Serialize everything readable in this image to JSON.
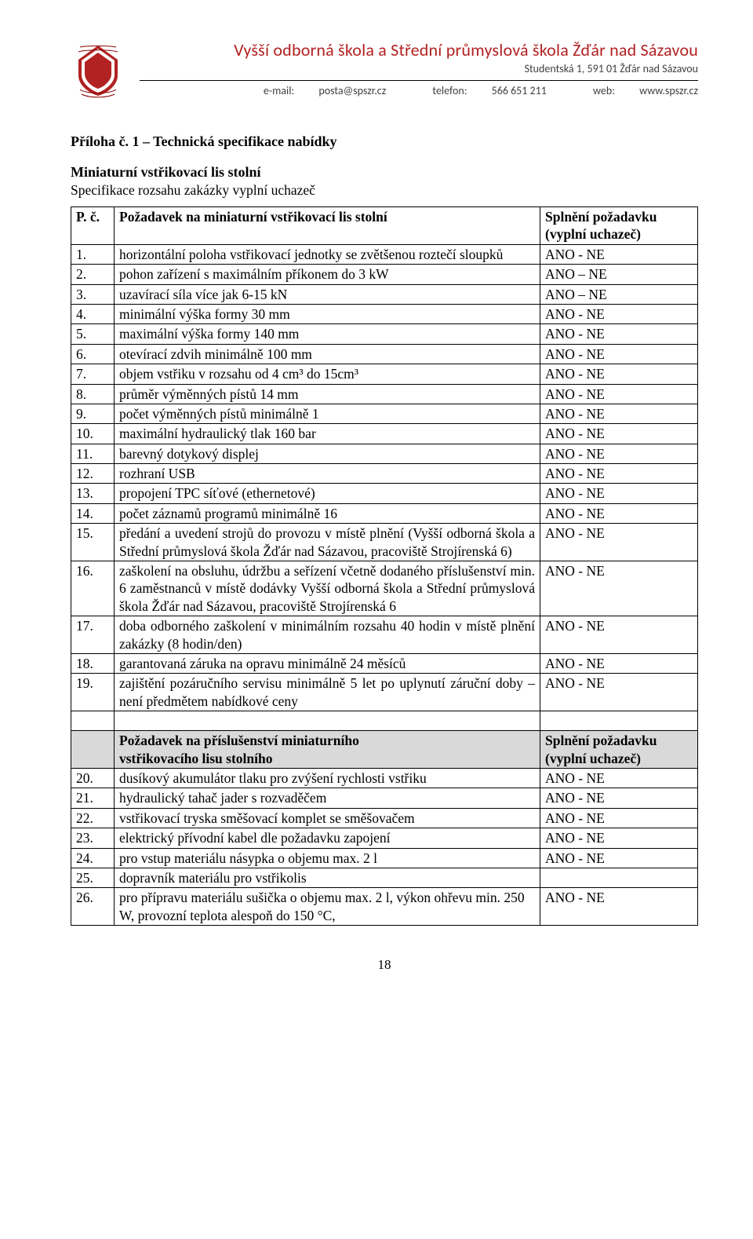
{
  "letterhead": {
    "school_name": "Vyšší odborná škola a Střední průmyslová škola Žďár nad Sázavou",
    "address": "Studentská 1, 591 01 Žďár nad Sázavou",
    "email_label": "e-mail:",
    "email_value": "posta@spszr.cz",
    "phone_label": "telefon:",
    "phone_value": "566 651 211",
    "web_label": "web:",
    "web_value": "www.spszr.cz",
    "logo_fill": "#b22222",
    "logo_line": "#8b0000"
  },
  "doc": {
    "title": "Příloha č. 1 – Technická specifikace nabídky",
    "section_title": "Miniaturní vstřikovací lis stolní",
    "section_sub": "Specifikace rozsahu zakázky vyplní uchazeč",
    "page_number": "18"
  },
  "table": {
    "header": {
      "num": "P. č.",
      "req": "Požadavek na miniaturní vstřikovací lis stolní",
      "ans_line1": "Splnění požadavku",
      "ans_line2": "(vyplní uchazeč)"
    },
    "rows": [
      {
        "n": "1.",
        "req": "horizontální poloha vstřikovací jednotky se zvětšenou roztečí sloupků",
        "ans": "ANO - NE",
        "justify": true
      },
      {
        "n": "2.",
        "req": "pohon zařízení s maximálním příkonem do 3 kW",
        "ans": "ANO – NE"
      },
      {
        "n": "3.",
        "req": "uzavírací síla více jak 6-15 kN",
        "ans": "ANO – NE"
      },
      {
        "n": "4.",
        "req": "minimální výška formy 30 mm",
        "ans": "ANO - NE"
      },
      {
        "n": "5.",
        "req": "maximální výška formy 140 mm",
        "ans": "ANO - NE"
      },
      {
        "n": "6.",
        "req": "otevírací zdvih minimálně 100 mm",
        "ans": "ANO - NE"
      },
      {
        "n": "7.",
        "req": "objem vstřiku v rozsahu od 4 cm³ do 15cm³",
        "ans": "ANO - NE"
      },
      {
        "n": "8.",
        "req": "průměr výměnných pístů 14 mm",
        "ans": "ANO - NE"
      },
      {
        "n": "9.",
        "req": "počet výměnných pístů minimálně 1",
        "ans": "ANO - NE"
      },
      {
        "n": "10.",
        "req": "maximální hydraulický tlak 160 bar",
        "ans": "ANO - NE"
      },
      {
        "n": "11.",
        "req": "barevný dotykový displej",
        "ans": "ANO - NE"
      },
      {
        "n": "12.",
        "req": "rozhraní USB",
        "ans": "ANO - NE"
      },
      {
        "n": "13.",
        "req": "propojení TPC síťové (ethernetové)",
        "ans": "ANO - NE"
      },
      {
        "n": "14.",
        "req": "počet záznamů programů minimálně 16",
        "ans": "ANO - NE"
      },
      {
        "n": "15.",
        "req": "předání a uvedení strojů do provozu v místě plnění (Vyšší odborná škola a Střední průmyslová škola Žďár nad Sázavou, pracoviště Strojírenská 6)",
        "ans": "ANO - NE",
        "justify": true
      },
      {
        "n": "16.",
        "req": "zaškolení na obsluhu, údržbu a seřízení včetně dodaného příslušenství min. 6 zaměstnanců v místě dodávky Vyšší odborná škola a Střední průmyslová škola Žďár nad Sázavou, pracoviště Strojírenská 6",
        "ans": "ANO - NE",
        "justify": true
      },
      {
        "n": "17.",
        "req": "doba odborného zaškolení v minimálním rozsahu 40 hodin v místě plnění zakázky (8 hodin/den)",
        "ans": "ANO - NE",
        "justify": true
      },
      {
        "n": "18.",
        "req": "garantovaná záruka na opravu minimálně 24 měsíců",
        "ans": "ANO - NE"
      },
      {
        "n": "19.",
        "req": "zajištění pozáručního servisu minimálně 5 let po uplynutí záruční doby – není předmětem nabídkové ceny",
        "ans": "ANO - NE",
        "justify": true
      }
    ],
    "header2": {
      "req_line1": "Požadavek na příslušenství miniaturního",
      "req_line2": "vstřikovacího lisu stolního",
      "ans_line1": "Splnění požadavku",
      "ans_line2": "(vyplní uchazeč)"
    },
    "rows2": [
      {
        "n": "20.",
        "req": "dusíkový akumulátor tlaku pro zvýšení rychlosti vstřiku",
        "ans": "ANO - NE"
      },
      {
        "n": "21.",
        "req": "hydraulický tahač jader s rozvaděčem",
        "ans": "ANO - NE"
      },
      {
        "n": "22.",
        "req": "vstřikovací tryska směšovací komplet se směšovačem",
        "ans": "ANO - NE"
      },
      {
        "n": "23.",
        "req": "elektrický přívodní kabel dle požadavku zapojení",
        "ans": "ANO - NE"
      },
      {
        "n": "24.",
        "req": "pro vstup materiálu násypka o objemu max. 2 l",
        "ans": "ANO - NE"
      },
      {
        "n": "25.",
        "req": "dopravník materiálu pro vstřikolis",
        "ans": ""
      },
      {
        "n": "26.",
        "req": "pro přípravu materiálu sušička o objemu max. 2 l, výkon ohřevu min. 250 W, provozní teplota alespoň do 150 °C,",
        "ans": "ANO - NE"
      }
    ]
  }
}
